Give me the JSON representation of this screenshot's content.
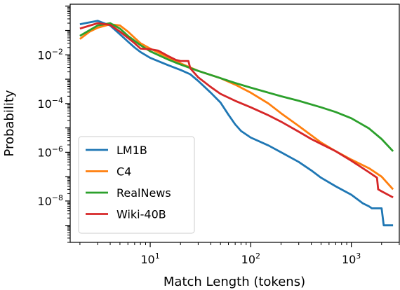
{
  "chart_data": {
    "type": "line",
    "title": "",
    "xlabel": "Match Length (tokens)",
    "ylabel": "Probability",
    "xscale": "log",
    "yscale": "log",
    "xlim": [
      1.6,
      3000
    ],
    "ylim": [
      2e-10,
      1.2
    ],
    "grid": false,
    "legend_position": "lower-left",
    "x_ticks": [
      {
        "value": 10,
        "base": "10",
        "exp": "1"
      },
      {
        "value": 100,
        "base": "10",
        "exp": "2"
      },
      {
        "value": 1000,
        "base": "10",
        "exp": "3"
      }
    ],
    "y_ticks": [
      {
        "value": 0.01,
        "base": "10",
        "exp": "−2"
      },
      {
        "value": 0.0001,
        "base": "10",
        "exp": "−4"
      },
      {
        "value": 1e-06,
        "base": "10",
        "exp": "−6"
      },
      {
        "value": 1e-08,
        "base": "10",
        "exp": "−8"
      }
    ],
    "series": [
      {
        "name": "LM1B",
        "color": "#1f77b4",
        "points": [
          [
            2,
            0.18
          ],
          [
            3,
            0.25
          ],
          [
            4,
            0.16
          ],
          [
            5,
            0.07
          ],
          [
            6,
            0.035
          ],
          [
            7,
            0.02
          ],
          [
            8,
            0.013
          ],
          [
            10,
            0.0075
          ],
          [
            15,
            0.0038
          ],
          [
            20,
            0.0024
          ],
          [
            25,
            0.0016
          ],
          [
            30,
            0.00085
          ],
          [
            40,
            0.00028
          ],
          [
            50,
            0.00011
          ],
          [
            60,
            3.5e-05
          ],
          [
            70,
            1.4e-05
          ],
          [
            80,
            7.5e-06
          ],
          [
            100,
            4e-06
          ],
          [
            150,
            1.9e-06
          ],
          [
            200,
            1e-06
          ],
          [
            300,
            4e-07
          ],
          [
            400,
            1.8e-07
          ],
          [
            500,
            9e-08
          ],
          [
            700,
            4e-08
          ],
          [
            1000,
            1.8e-08
          ],
          [
            1300,
            8e-09
          ],
          [
            1500,
            6e-09
          ],
          [
            1600,
            5e-09
          ],
          [
            2000,
            5e-09
          ],
          [
            2100,
            1e-09
          ],
          [
            2600,
            1e-09
          ]
        ]
      },
      {
        "name": "C4",
        "color": "#ff7f0e",
        "points": [
          [
            2,
            0.045
          ],
          [
            2.5,
            0.09
          ],
          [
            3,
            0.13
          ],
          [
            4,
            0.18
          ],
          [
            5,
            0.16
          ],
          [
            6,
            0.09
          ],
          [
            7,
            0.05
          ],
          [
            8,
            0.03
          ],
          [
            10,
            0.018
          ],
          [
            15,
            0.008
          ],
          [
            20,
            0.0045
          ],
          [
            30,
            0.0022
          ],
          [
            50,
            0.0011
          ],
          [
            70,
            0.0006
          ],
          [
            100,
            0.00028
          ],
          [
            150,
            0.0001
          ],
          [
            200,
            4e-05
          ],
          [
            300,
            1.2e-05
          ],
          [
            400,
            5e-06
          ],
          [
            500,
            2.5e-06
          ],
          [
            700,
            1.1e-06
          ],
          [
            1000,
            5e-07
          ],
          [
            1500,
            2.2e-07
          ],
          [
            2000,
            1e-07
          ],
          [
            2600,
            3e-08
          ]
        ]
      },
      {
        "name": "RealNews",
        "color": "#2ca02c",
        "points": [
          [
            2,
            0.06
          ],
          [
            3,
            0.16
          ],
          [
            4,
            0.2
          ],
          [
            5,
            0.12
          ],
          [
            6,
            0.06
          ],
          [
            8,
            0.025
          ],
          [
            10,
            0.014
          ],
          [
            15,
            0.0065
          ],
          [
            20,
            0.004
          ],
          [
            30,
            0.0022
          ],
          [
            50,
            0.0011
          ],
          [
            70,
            0.0007
          ],
          [
            100,
            0.00045
          ],
          [
            150,
            0.00028
          ],
          [
            200,
            0.0002
          ],
          [
            300,
            0.00013
          ],
          [
            500,
            7e-05
          ],
          [
            700,
            4.5e-05
          ],
          [
            1000,
            2.5e-05
          ],
          [
            1500,
            9.5e-06
          ],
          [
            2000,
            3.5e-06
          ],
          [
            2600,
            1.1e-06
          ]
        ]
      },
      {
        "name": "Wiki-40B",
        "color": "#d62728",
        "points": [
          [
            2,
            0.12
          ],
          [
            3,
            0.2
          ],
          [
            4,
            0.17
          ],
          [
            5,
            0.09
          ],
          [
            6,
            0.05
          ],
          [
            7,
            0.03
          ],
          [
            8,
            0.018
          ],
          [
            10,
            0.017
          ],
          [
            12,
            0.015
          ],
          [
            15,
            0.009
          ],
          [
            18,
            0.0062
          ],
          [
            20,
            0.0056
          ],
          [
            24,
            0.0056
          ],
          [
            25,
            0.0028
          ],
          [
            30,
            0.0012
          ],
          [
            40,
            0.00048
          ],
          [
            50,
            0.00025
          ],
          [
            70,
            0.00013
          ],
          [
            100,
            7e-05
          ],
          [
            150,
            3.3e-05
          ],
          [
            200,
            1.8e-05
          ],
          [
            300,
            7e-06
          ],
          [
            400,
            3.5e-06
          ],
          [
            500,
            2.2e-06
          ],
          [
            700,
            1.1e-06
          ],
          [
            1000,
            4.5e-07
          ],
          [
            1500,
            1.5e-07
          ],
          [
            1800,
            9e-08
          ],
          [
            1850,
            3e-08
          ],
          [
            2000,
            2.5e-08
          ],
          [
            2600,
            1.4e-08
          ]
        ]
      }
    ]
  }
}
